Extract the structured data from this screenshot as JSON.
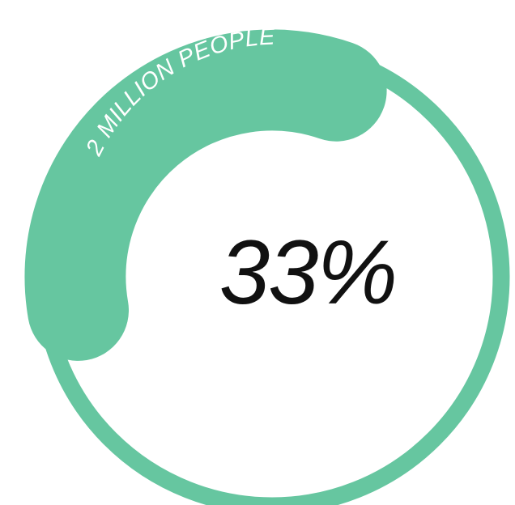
{
  "gauge": {
    "percent_label": "33%",
    "arc_label": "2 MILLION PEOPLE",
    "share": 0.33
  },
  "colors": {
    "accent": "#66C6A0",
    "background": "#FFFFFF",
    "percent_text": "#111111",
    "arc_label_text": "#FFFFFF"
  }
}
